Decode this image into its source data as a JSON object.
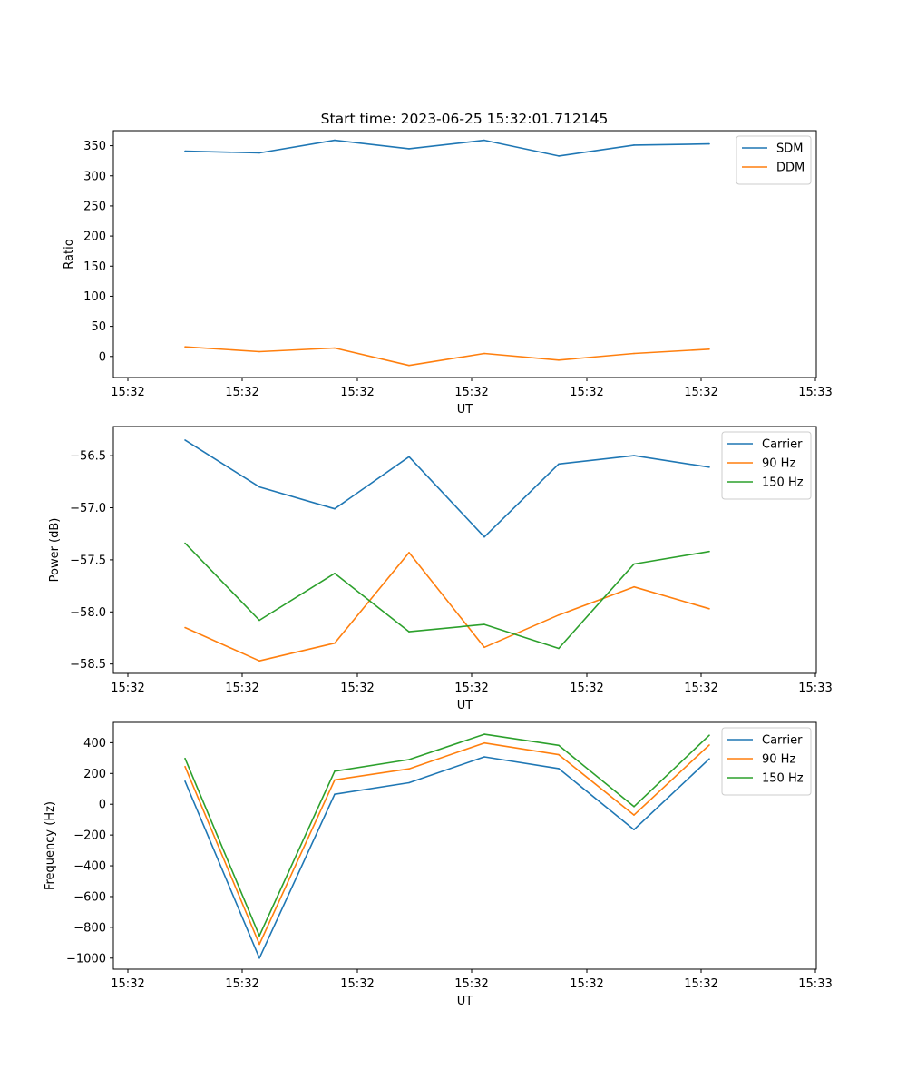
{
  "figure": {
    "title": "Start time: 2023-06-25 15:32:01.712145"
  },
  "chart_data": [
    {
      "type": "line",
      "xlabel": "UT",
      "ylabel": "Ratio",
      "x_ticks": [
        "15:32",
        "15:32",
        "15:32",
        "15:32",
        "15:32",
        "15:32",
        "15:33"
      ],
      "y_ticks": [
        0,
        50,
        100,
        150,
        200,
        250,
        300,
        350
      ],
      "ylim": [
        -35,
        375
      ],
      "x": [
        1,
        2,
        3,
        4,
        5,
        6,
        7,
        8
      ],
      "series": [
        {
          "name": "SDM",
          "color": "#1f77b4",
          "values": [
            341,
            338,
            359,
            345,
            359,
            333,
            351,
            353
          ]
        },
        {
          "name": "DDM",
          "color": "#ff7f0e",
          "values": [
            16,
            8,
            14,
            -15,
            5,
            -6,
            5,
            12
          ]
        }
      ],
      "legend": "top-right",
      "grid": false
    },
    {
      "type": "line",
      "xlabel": "UT",
      "ylabel": "Power (dB)",
      "x_ticks": [
        "15:32",
        "15:32",
        "15:32",
        "15:32",
        "15:32",
        "15:32",
        "15:33"
      ],
      "y_ticks": [
        "−56.5",
        "−57.0",
        "−57.5",
        "−58.0",
        "−58.5"
      ],
      "ylim": [
        -58.59,
        -56.22
      ],
      "x": [
        1,
        2,
        3,
        4,
        5,
        6,
        7,
        8
      ],
      "series": [
        {
          "name": "Carrier",
          "color": "#1f77b4",
          "values": [
            -56.35,
            -56.8,
            -57.01,
            -56.51,
            -57.28,
            -56.58,
            -56.5,
            -56.61
          ]
        },
        {
          "name": "90 Hz",
          "color": "#ff7f0e",
          "values": [
            -58.15,
            -58.47,
            -58.3,
            -57.43,
            -58.34,
            -58.03,
            -57.76,
            -57.97
          ]
        },
        {
          "name": "150 Hz",
          "color": "#2ca02c",
          "values": [
            -57.34,
            -58.08,
            -57.63,
            -58.19,
            -58.12,
            -58.35,
            -57.54,
            -57.42
          ]
        }
      ],
      "legend": "top-right",
      "grid": false
    },
    {
      "type": "line",
      "xlabel": "UT",
      "ylabel": "Frequency (Hz)",
      "x_ticks": [
        "15:32",
        "15:32",
        "15:32",
        "15:32",
        "15:32",
        "15:32",
        "15:33"
      ],
      "y_ticks": [
        "400",
        "200",
        "0",
        "−200",
        "−400",
        "−600",
        "−800",
        "−1000"
      ],
      "ylim": [
        -1072,
        532
      ],
      "x": [
        1,
        2,
        3,
        4,
        5,
        6,
        7,
        8
      ],
      "series": [
        {
          "name": "Carrier",
          "color": "#1f77b4",
          "values": [
            150,
            -1000,
            65,
            140,
            308,
            232,
            -165,
            295
          ]
        },
        {
          "name": "90 Hz",
          "color": "#ff7f0e",
          "values": [
            245,
            -910,
            158,
            230,
            398,
            322,
            -70,
            385
          ]
        },
        {
          "name": "150 Hz",
          "color": "#2ca02c",
          "values": [
            298,
            -855,
            215,
            290,
            455,
            383,
            -15,
            448
          ]
        }
      ],
      "legend": "top-right",
      "grid": false
    }
  ]
}
